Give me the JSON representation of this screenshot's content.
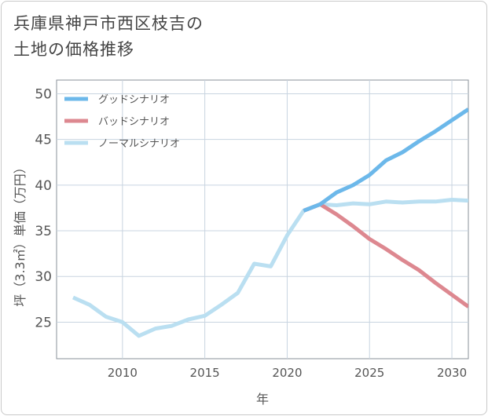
{
  "title_lines": [
    "兵庫県神戸市西区枝吉の",
    "土地の価格推移"
  ],
  "chart_data": {
    "type": "line",
    "xlabel": "年",
    "ylabel": "坪（3.3㎡）単価（万円）",
    "xlim": [
      2006,
      2031
    ],
    "ylim": [
      21,
      51.5
    ],
    "xticks": [
      2010,
      2015,
      2020,
      2025,
      2030
    ],
    "yticks": [
      25,
      30,
      35,
      40,
      45,
      50
    ],
    "grid": true,
    "legend_position": "top-left",
    "series": [
      {
        "name": "グッドシナリオ",
        "color": "#6cb8ea",
        "x": [
          2021,
          2022,
          2023,
          2024,
          2025,
          2026,
          2027,
          2028,
          2029,
          2030,
          2031
        ],
        "y": [
          37.2,
          37.9,
          39.2,
          40.0,
          41.1,
          42.7,
          43.6,
          44.8,
          45.9,
          47.1,
          48.3
        ]
      },
      {
        "name": "バッドシナリオ",
        "color": "#dd8890",
        "x": [
          2021,
          2022,
          2023,
          2024,
          2025,
          2026,
          2027,
          2028,
          2029,
          2030,
          2031
        ],
        "y": [
          37.2,
          37.9,
          36.8,
          35.5,
          34.1,
          33.0,
          31.8,
          30.7,
          29.3,
          28.0,
          26.7
        ]
      },
      {
        "name": "ノーマルシナリオ",
        "color": "#badff1",
        "x": [
          2007,
          2008,
          2009,
          2010,
          2011,
          2012,
          2013,
          2014,
          2015,
          2016,
          2017,
          2018,
          2019,
          2020,
          2021,
          2022,
          2023,
          2024,
          2025,
          2026,
          2027,
          2028,
          2029,
          2030,
          2031
        ],
        "y": [
          27.7,
          26.9,
          25.6,
          25.0,
          23.5,
          24.3,
          24.6,
          25.3,
          25.7,
          26.9,
          28.2,
          31.4,
          31.1,
          34.5,
          37.2,
          37.9,
          37.8,
          38.0,
          37.9,
          38.2,
          38.1,
          38.2,
          38.2,
          38.4,
          38.3
        ]
      }
    ]
  }
}
